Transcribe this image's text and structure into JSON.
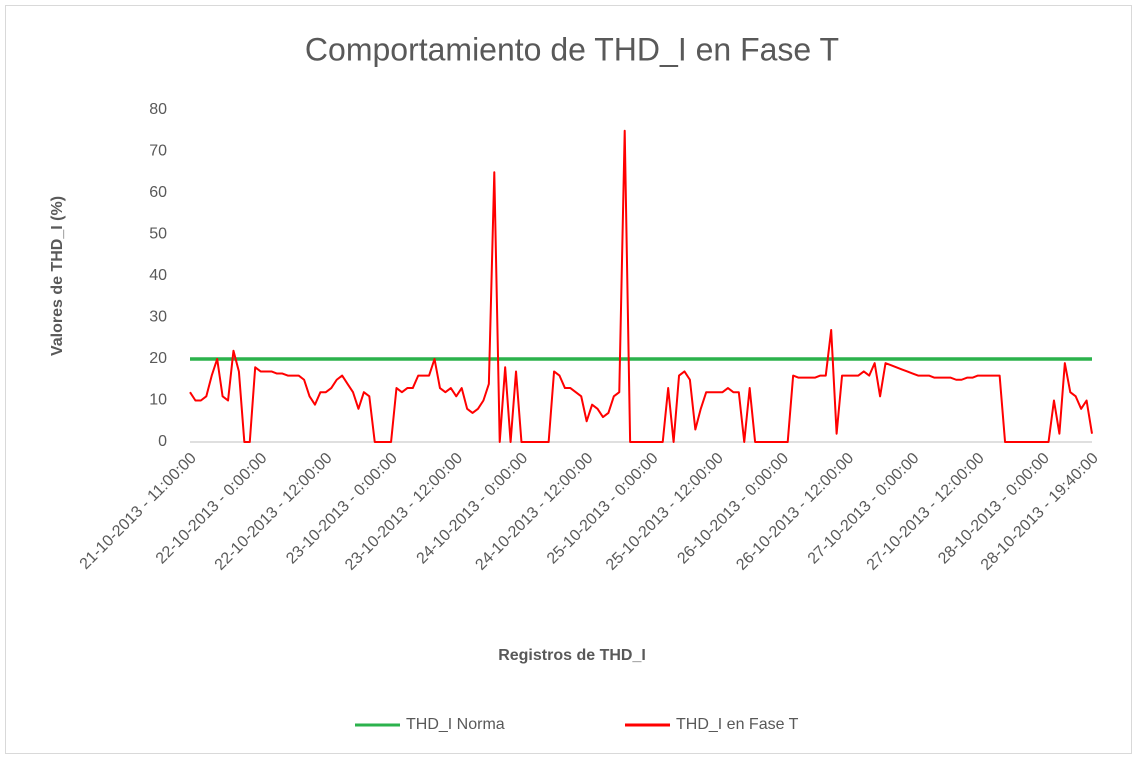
{
  "chart_data": {
    "type": "line",
    "title": "Comportamiento de THD_I en Fase T",
    "x_label": "Registros de THD_I",
    "y_label": "Valores de THD_I (%)",
    "ylim": [
      0,
      80
    ],
    "yticks": [
      0,
      10,
      20,
      30,
      40,
      50,
      60,
      70,
      80
    ],
    "grid": false,
    "legend": "bottom",
    "categories": [
      "21-10-2013 - 11:00:00",
      null,
      null,
      null,
      null,
      null,
      null,
      null,
      null,
      null,
      null,
      null,
      null,
      "22-10-2013 - 0:00:00",
      null,
      null,
      null,
      null,
      null,
      null,
      null,
      null,
      null,
      null,
      null,
      "22-10-2013 - 12:00:00",
      null,
      null,
      null,
      null,
      null,
      null,
      null,
      null,
      null,
      null,
      null,
      "23-10-2013 - 0:00:00",
      null,
      null,
      null,
      null,
      null,
      null,
      null,
      null,
      null,
      null,
      null,
      "23-10-2013 - 12:00:00",
      null,
      null,
      null,
      null,
      null,
      null,
      null,
      null,
      null,
      null,
      null,
      "24-10-2013 - 0:00:00",
      null,
      null,
      null,
      null,
      null,
      null,
      null,
      null,
      null,
      null,
      null,
      "24-10-2013 - 12:00:00",
      null,
      null,
      null,
      null,
      null,
      null,
      null,
      null,
      null,
      null,
      null,
      "25-10-2013 - 0:00:00",
      null,
      null,
      null,
      null,
      null,
      null,
      null,
      null,
      null,
      null,
      null,
      "25-10-2013 - 12:00:00",
      null,
      null,
      null,
      null,
      null,
      null,
      null,
      null,
      null,
      null,
      null,
      "26-10-2013 - 0:00:00",
      null,
      null,
      null,
      null,
      null,
      null,
      null,
      null,
      null,
      null,
      null,
      "26-10-2013 - 12:00:00",
      null,
      null,
      null,
      null,
      null,
      null,
      null,
      null,
      null,
      null,
      null,
      "27-10-2013 - 0:00:00",
      null,
      null,
      null,
      null,
      null,
      null,
      null,
      null,
      null,
      null,
      null,
      "27-10-2013 - 12:00:00",
      null,
      null,
      null,
      null,
      null,
      null,
      null,
      null,
      null,
      null,
      null,
      "28-10-2013 - 0:00:00",
      null,
      null,
      null,
      null,
      null,
      null,
      null,
      null,
      "28-10-2013 - 19:40:00"
    ],
    "series": [
      {
        "name": "THD_I Norma",
        "color": "#2bb24c",
        "values": [
          20,
          20,
          20,
          20,
          20,
          20,
          20,
          20,
          20,
          20,
          20,
          20,
          20,
          20,
          20,
          20,
          20,
          20,
          20,
          20,
          20,
          20,
          20,
          20,
          20,
          20,
          20,
          20,
          20,
          20,
          20,
          20,
          20,
          20,
          20,
          20,
          20,
          20,
          20,
          20,
          20,
          20,
          20,
          20,
          20,
          20,
          20,
          20,
          20,
          20,
          20,
          20,
          20,
          20,
          20,
          20,
          20,
          20,
          20,
          20,
          20,
          20,
          20,
          20,
          20,
          20,
          20,
          20,
          20,
          20,
          20,
          20,
          20,
          20,
          20,
          20,
          20,
          20,
          20,
          20,
          20,
          20,
          20,
          20,
          20,
          20,
          20,
          20,
          20,
          20,
          20,
          20,
          20,
          20,
          20,
          20,
          20,
          20,
          20,
          20,
          20,
          20,
          20,
          20,
          20,
          20,
          20,
          20,
          20,
          20,
          20,
          20,
          20,
          20,
          20,
          20,
          20,
          20,
          20,
          20,
          20,
          20,
          20,
          20,
          20,
          20,
          20,
          20,
          20,
          20,
          20,
          20,
          20,
          20,
          20,
          20,
          20,
          20,
          20,
          20,
          20,
          20,
          20,
          20,
          20,
          20,
          20,
          20,
          20,
          20,
          20,
          20,
          20,
          20,
          20,
          20,
          20,
          20,
          20,
          20,
          20,
          20,
          20,
          20,
          20,
          20,
          20
        ]
      },
      {
        "name": "THD_I en Fase T",
        "color": "#ff0000",
        "values": [
          12,
          10,
          10,
          11,
          16,
          20,
          11,
          10,
          22,
          17,
          0,
          0,
          18,
          17,
          17,
          17,
          16.5,
          16.5,
          16,
          16,
          16,
          15,
          11,
          9,
          12,
          12,
          13,
          15,
          16,
          14,
          12,
          8,
          12,
          11,
          0,
          0,
          0,
          0,
          13,
          12,
          13,
          13,
          16,
          16,
          16,
          20,
          13,
          12,
          13,
          11,
          13,
          8,
          7,
          8,
          10,
          14,
          65,
          0,
          18,
          0,
          17,
          0,
          0,
          0,
          0,
          0,
          0,
          17,
          16,
          13,
          13,
          12,
          11,
          5,
          9,
          8,
          6,
          7,
          11,
          12,
          75,
          0,
          0,
          0,
          0,
          0,
          0,
          0,
          13,
          0,
          16,
          17,
          15,
          3,
          8,
          12,
          12,
          12,
          12,
          13,
          12,
          12,
          0,
          13,
          0,
          0,
          0,
          0,
          0,
          0,
          0,
          16,
          15.5,
          15.5,
          15.5,
          15.5,
          16,
          16,
          27,
          2,
          16,
          16,
          16,
          16,
          17,
          16,
          19,
          11,
          19,
          18.5,
          18,
          17.5,
          17,
          16.5,
          16,
          16,
          16,
          15.5,
          15.5,
          15.5,
          15.5,
          15,
          15,
          15.5,
          15.5,
          16,
          16,
          16,
          16,
          16,
          0,
          0,
          0,
          0,
          0,
          0,
          0,
          0,
          0,
          10,
          2,
          19,
          12,
          11,
          8,
          10,
          2
        ]
      }
    ]
  }
}
